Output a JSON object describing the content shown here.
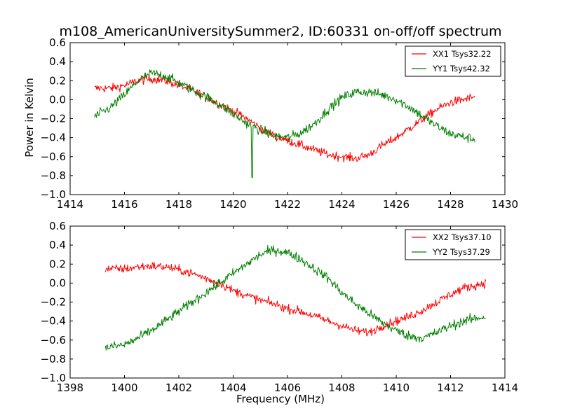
{
  "title": "m108_AmericanUniversitySummer2, ID:60331 on-off/off spectrum",
  "ylabel": "Power in Kelvin",
  "xlabel": "Frequency (MHz)",
  "colors": {
    "red": "#ff0000",
    "green": "#007f00",
    "axes": "#000000",
    "background": "#ffffff"
  },
  "chart_data": [
    {
      "type": "line",
      "title": "m108_AmericanUniversitySummer2, ID:60331 on-off/off spectrum",
      "xlabel": "",
      "ylabel": "Power in Kelvin",
      "xlim": [
        1414,
        1430
      ],
      "ylim": [
        -1.0,
        0.6
      ],
      "xticks": [
        "1414",
        "1416",
        "1418",
        "1420",
        "1422",
        "1424",
        "1426",
        "1428",
        "1430"
      ],
      "yticks": [
        "0.6",
        "0.4",
        "0.2",
        "0.0",
        "−0.2",
        "−0.4",
        "−0.6",
        "−0.8",
        "−1.0"
      ],
      "legend_position": "top-right",
      "series": [
        {
          "name": "XX1 Tsys32.22",
          "color": "#ff0000",
          "x_range": [
            1414.9,
            1428.9
          ],
          "noise": 0.045,
          "x": [
            1414.9,
            1415.5,
            1416.0,
            1416.5,
            1417.0,
            1417.5,
            1418.0,
            1418.5,
            1419.0,
            1419.5,
            1420.0,
            1420.5,
            1421.0,
            1421.5,
            1422.0,
            1422.5,
            1423.0,
            1423.5,
            1424.0,
            1424.5,
            1425.0,
            1425.5,
            1426.0,
            1426.5,
            1427.0,
            1427.5,
            1428.0,
            1428.9
          ],
          "y": [
            0.12,
            0.12,
            0.15,
            0.2,
            0.22,
            0.2,
            0.15,
            0.1,
            0.03,
            -0.05,
            -0.12,
            -0.2,
            -0.3,
            -0.38,
            -0.43,
            -0.48,
            -0.53,
            -0.58,
            -0.6,
            -0.62,
            -0.58,
            -0.48,
            -0.4,
            -0.3,
            -0.2,
            -0.1,
            -0.03,
            0.03
          ]
        },
        {
          "name": "YY1 Tsys42.32",
          "color": "#007f00",
          "x_range": [
            1414.9,
            1428.9
          ],
          "noise": 0.05,
          "x": [
            1414.9,
            1415.5,
            1416.0,
            1416.5,
            1417.0,
            1417.5,
            1418.0,
            1418.5,
            1419.0,
            1419.5,
            1420.0,
            1420.5,
            1421.0,
            1421.5,
            1422.0,
            1422.5,
            1423.0,
            1423.5,
            1424.0,
            1424.5,
            1425.0,
            1425.5,
            1426.0,
            1426.5,
            1427.0,
            1427.5,
            1428.0,
            1428.9
          ],
          "y": [
            -0.18,
            -0.08,
            0.05,
            0.2,
            0.28,
            0.25,
            0.18,
            0.1,
            0.03,
            -0.05,
            -0.15,
            -0.25,
            -0.32,
            -0.38,
            -0.4,
            -0.35,
            -0.25,
            -0.1,
            0.02,
            0.08,
            0.08,
            0.05,
            0.0,
            -0.08,
            -0.18,
            -0.28,
            -0.36,
            -0.42
          ],
          "spike": {
            "x": 1420.7,
            "y": -0.82
          }
        }
      ]
    },
    {
      "type": "line",
      "title": "",
      "xlabel": "Frequency (MHz)",
      "ylabel": "",
      "xlim": [
        1398,
        1414
      ],
      "ylim": [
        -1.0,
        0.6
      ],
      "xticks": [
        "1398",
        "1400",
        "1402",
        "1404",
        "1406",
        "1408",
        "1410",
        "1412",
        "1414"
      ],
      "yticks": [
        "0.6",
        "0.4",
        "0.2",
        "0.0",
        "−0.2",
        "−0.4",
        "−0.6",
        "−0.8",
        "−1.0"
      ],
      "legend_position": "top-right",
      "series": [
        {
          "name": "XX2 Tsys37.10",
          "color": "#ff0000",
          "x_range": [
            1399.3,
            1413.3
          ],
          "noise": 0.045,
          "x": [
            1399.3,
            1400.0,
            1400.5,
            1401.0,
            1401.5,
            1402.0,
            1402.5,
            1403.0,
            1403.5,
            1404.0,
            1404.5,
            1405.0,
            1405.5,
            1406.0,
            1406.5,
            1407.0,
            1407.5,
            1408.0,
            1408.5,
            1409.0,
            1409.5,
            1410.0,
            1410.5,
            1411.0,
            1411.5,
            1412.0,
            1412.5,
            1413.3
          ],
          "y": [
            0.15,
            0.15,
            0.17,
            0.18,
            0.17,
            0.14,
            0.1,
            0.05,
            0.0,
            -0.08,
            -0.13,
            -0.18,
            -0.22,
            -0.27,
            -0.3,
            -0.35,
            -0.4,
            -0.45,
            -0.5,
            -0.52,
            -0.45,
            -0.4,
            -0.35,
            -0.28,
            -0.2,
            -0.12,
            -0.05,
            0.0
          ]
        },
        {
          "name": "YY2 Tsys37.29",
          "color": "#007f00",
          "x_range": [
            1399.3,
            1413.3
          ],
          "noise": 0.05,
          "x": [
            1399.3,
            1400.0,
            1400.5,
            1401.0,
            1401.5,
            1402.0,
            1402.5,
            1403.0,
            1403.5,
            1404.0,
            1404.5,
            1405.0,
            1405.5,
            1406.0,
            1406.5,
            1407.0,
            1407.5,
            1408.0,
            1408.5,
            1409.0,
            1409.5,
            1410.0,
            1410.5,
            1411.0,
            1411.5,
            1412.0,
            1412.5,
            1413.3
          ],
          "y": [
            -0.68,
            -0.65,
            -0.58,
            -0.5,
            -0.4,
            -0.3,
            -0.2,
            -0.1,
            0.0,
            0.1,
            0.2,
            0.3,
            0.35,
            0.32,
            0.25,
            0.15,
            0.05,
            -0.1,
            -0.22,
            -0.32,
            -0.42,
            -0.5,
            -0.56,
            -0.58,
            -0.52,
            -0.45,
            -0.4,
            -0.35
          ]
        }
      ]
    }
  ]
}
